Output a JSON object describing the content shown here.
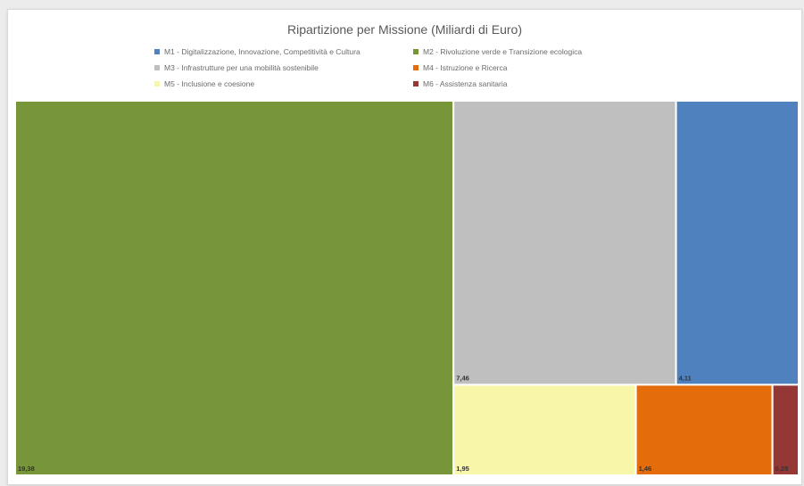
{
  "chart_data": {
    "type": "treemap",
    "title": "Ripartizione per Missione (Miliardi di Euro)",
    "unit": "Miliardi di Euro",
    "legend_position": "top",
    "series": [
      {
        "name": "M1 - Digitalizzazione, Innovazione, Competitività e Cultura",
        "value": 4.11,
        "label": "4,11",
        "color": "#4e81bd"
      },
      {
        "name": "M2 - Rivoluzione verde e Transizione ecologica",
        "value": 19.38,
        "label": "19,38",
        "color": "#77963a"
      },
      {
        "name": "M3 - Infrastrutture per una mobilità sostenibile",
        "value": 7.46,
        "label": "7,46",
        "color": "#bfbfbf"
      },
      {
        "name": "M4 - Istruzione e Ricerca",
        "value": 1.46,
        "label": "1,46",
        "color": "#e46c0a"
      },
      {
        "name": "M5 - Inclusione e coesione",
        "value": 1.95,
        "label": "1,95",
        "color": "#f8f6a8"
      },
      {
        "name": "M6 - Assistenza sanitaria",
        "value": 0.28,
        "label": "0,28",
        "color": "#953735"
      }
    ]
  }
}
